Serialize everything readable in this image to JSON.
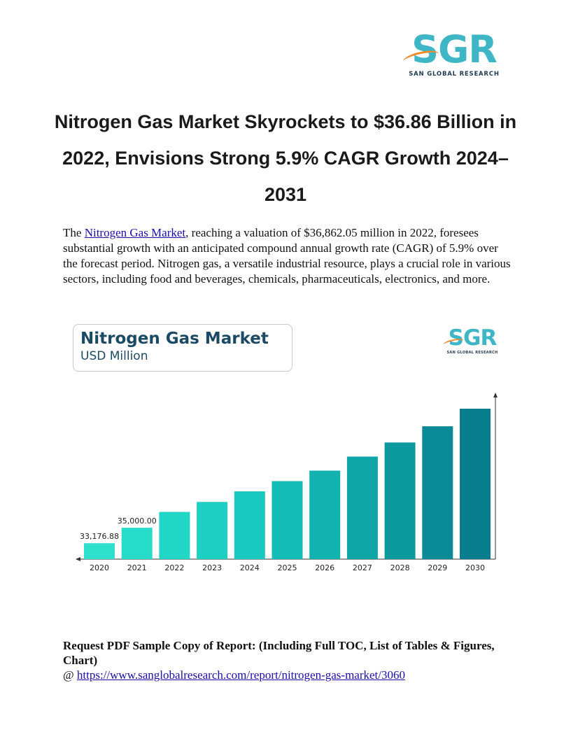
{
  "header_logo": {
    "mark": "SGR",
    "subtitle": "SAN GLOBAL RESEARCH"
  },
  "title": "Nitrogen Gas Market Skyrockets to $36.86 Billion in 2022, Envisions Strong 5.9% CAGR Growth 2024–2031",
  "intro": {
    "prefix": "The ",
    "link_text": "Nitrogen Gas Market",
    "body": ", reaching a valuation of $36,862.05 million in 2022, foresees substantial growth with an anticipated compound annual growth rate (CAGR) of 5.9% over the forecast period. Nitrogen gas, a versatile industrial resource, plays a crucial role in various sectors, including food and beverages, chemicals, pharmaceuticals, electronics, and more."
  },
  "chart_card": {
    "title": "Nitrogen Gas Market",
    "subtitle": "USD Million"
  },
  "chart_logo": {
    "mark": "SGR",
    "subtitle": "SAN GLOBAL RESEARCH"
  },
  "chart_data": {
    "type": "bar",
    "title": "Nitrogen Gas Market",
    "subtitle": "USD Million",
    "categories": [
      "2020",
      "2021",
      "2022",
      "2023",
      "2024",
      "2025",
      "2026",
      "2027",
      "2028",
      "2029",
      "2030"
    ],
    "values": [
      33176.88,
      35000.0,
      36862.05,
      38037,
      39285,
      40490,
      41725,
      43380,
      45040,
      46950,
      49020
    ],
    "data_labels": [
      "33,176.88",
      "35,000.00",
      "",
      "",
      "",
      "",
      "",
      "",
      "",
      "",
      ""
    ],
    "axis_baseline": 31300,
    "grid": false,
    "colors": [
      "#2fe0cc",
      "#27ddc9",
      "#22d6c5",
      "#1ed0c2",
      "#19c8bf",
      "#15bdb8",
      "#12b2b0",
      "#0fa6a7",
      "#0c999e",
      "#0a8b96",
      "#087e8f"
    ]
  },
  "cta": {
    "bold_text": "Request PDF Sample Copy of Report: (Including Full TOC, List of Tables & Figures, Chart)",
    "at": "@ ",
    "link": "https://www.sanglobalresearch.com/report/nitrogen-gas-market/3060"
  }
}
